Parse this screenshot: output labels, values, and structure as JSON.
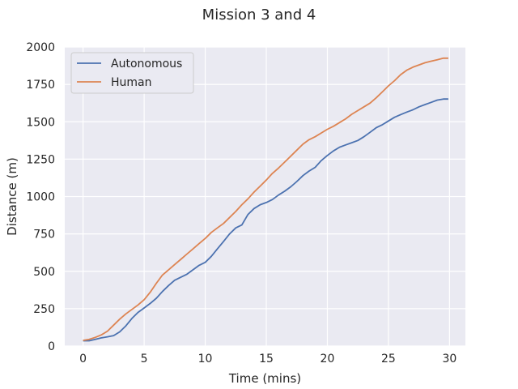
{
  "chart_data": {
    "type": "line",
    "title": "Mission 3 and 4",
    "xlabel": "Time (mins)",
    "ylabel": "Distance (m)",
    "xlim": [
      -1.5,
      31.3
    ],
    "ylim": [
      0,
      2000
    ],
    "xticks": [
      0,
      5,
      10,
      15,
      20,
      25,
      30
    ],
    "yticks": [
      0,
      250,
      500,
      750,
      1000,
      1250,
      1500,
      1750,
      2000
    ],
    "grid": true,
    "legend_position": "top-left",
    "series": [
      {
        "name": "Autonomous",
        "color": "#4c72b0",
        "x": [
          0,
          0.5,
          1,
          1.5,
          2,
          2.5,
          3,
          3.5,
          4,
          4.5,
          5,
          5.5,
          6,
          6.5,
          7,
          7.5,
          8,
          8.5,
          9,
          9.5,
          10,
          10.5,
          11,
          11.5,
          12,
          12.5,
          13,
          13.5,
          14,
          14.5,
          15,
          15.5,
          16,
          16.5,
          17,
          17.5,
          18,
          18.5,
          19,
          19.5,
          20,
          20.5,
          21,
          21.5,
          22,
          22.5,
          23,
          23.5,
          24,
          24.5,
          25,
          25.5,
          26,
          26.5,
          27,
          27.5,
          28,
          28.5,
          29,
          29.5,
          29.9
        ],
        "values": [
          35,
          35,
          45,
          55,
          62,
          70,
          95,
          135,
          185,
          225,
          255,
          285,
          320,
          365,
          405,
          440,
          460,
          480,
          510,
          540,
          560,
          600,
          650,
          700,
          750,
          790,
          810,
          880,
          920,
          945,
          960,
          980,
          1010,
          1035,
          1065,
          1100,
          1140,
          1170,
          1195,
          1240,
          1275,
          1305,
          1330,
          1345,
          1360,
          1375,
          1400,
          1430,
          1460,
          1480,
          1505,
          1530,
          1548,
          1565,
          1580,
          1600,
          1615,
          1630,
          1645,
          1652,
          1652
        ]
      },
      {
        "name": "Human",
        "color": "#dd8452",
        "x": [
          0,
          0.5,
          1,
          1.5,
          2,
          2.5,
          3,
          3.5,
          4,
          4.5,
          5,
          5.5,
          6,
          6.5,
          7,
          7.5,
          8,
          8.5,
          9,
          9.5,
          10,
          10.5,
          11,
          11.5,
          12,
          12.5,
          13,
          13.5,
          14,
          14.5,
          15,
          15.5,
          16,
          16.5,
          17,
          17.5,
          18,
          18.5,
          19,
          19.5,
          20,
          20.5,
          21,
          21.5,
          22,
          22.5,
          23,
          23.5,
          24,
          24.5,
          25,
          25.5,
          26,
          26.5,
          27,
          27.5,
          28,
          28.5,
          29,
          29.5,
          29.9
        ],
        "values": [
          38,
          45,
          58,
          75,
          100,
          140,
          180,
          215,
          245,
          275,
          310,
          360,
          420,
          475,
          510,
          545,
          580,
          615,
          650,
          685,
          720,
          760,
          790,
          820,
          860,
          900,
          945,
          985,
          1030,
          1070,
          1110,
          1155,
          1190,
          1230,
          1270,
          1310,
          1350,
          1380,
          1400,
          1425,
          1450,
          1470,
          1495,
          1520,
          1550,
          1575,
          1600,
          1625,
          1660,
          1700,
          1740,
          1775,
          1815,
          1845,
          1865,
          1880,
          1895,
          1905,
          1915,
          1925,
          1925
        ]
      }
    ]
  }
}
